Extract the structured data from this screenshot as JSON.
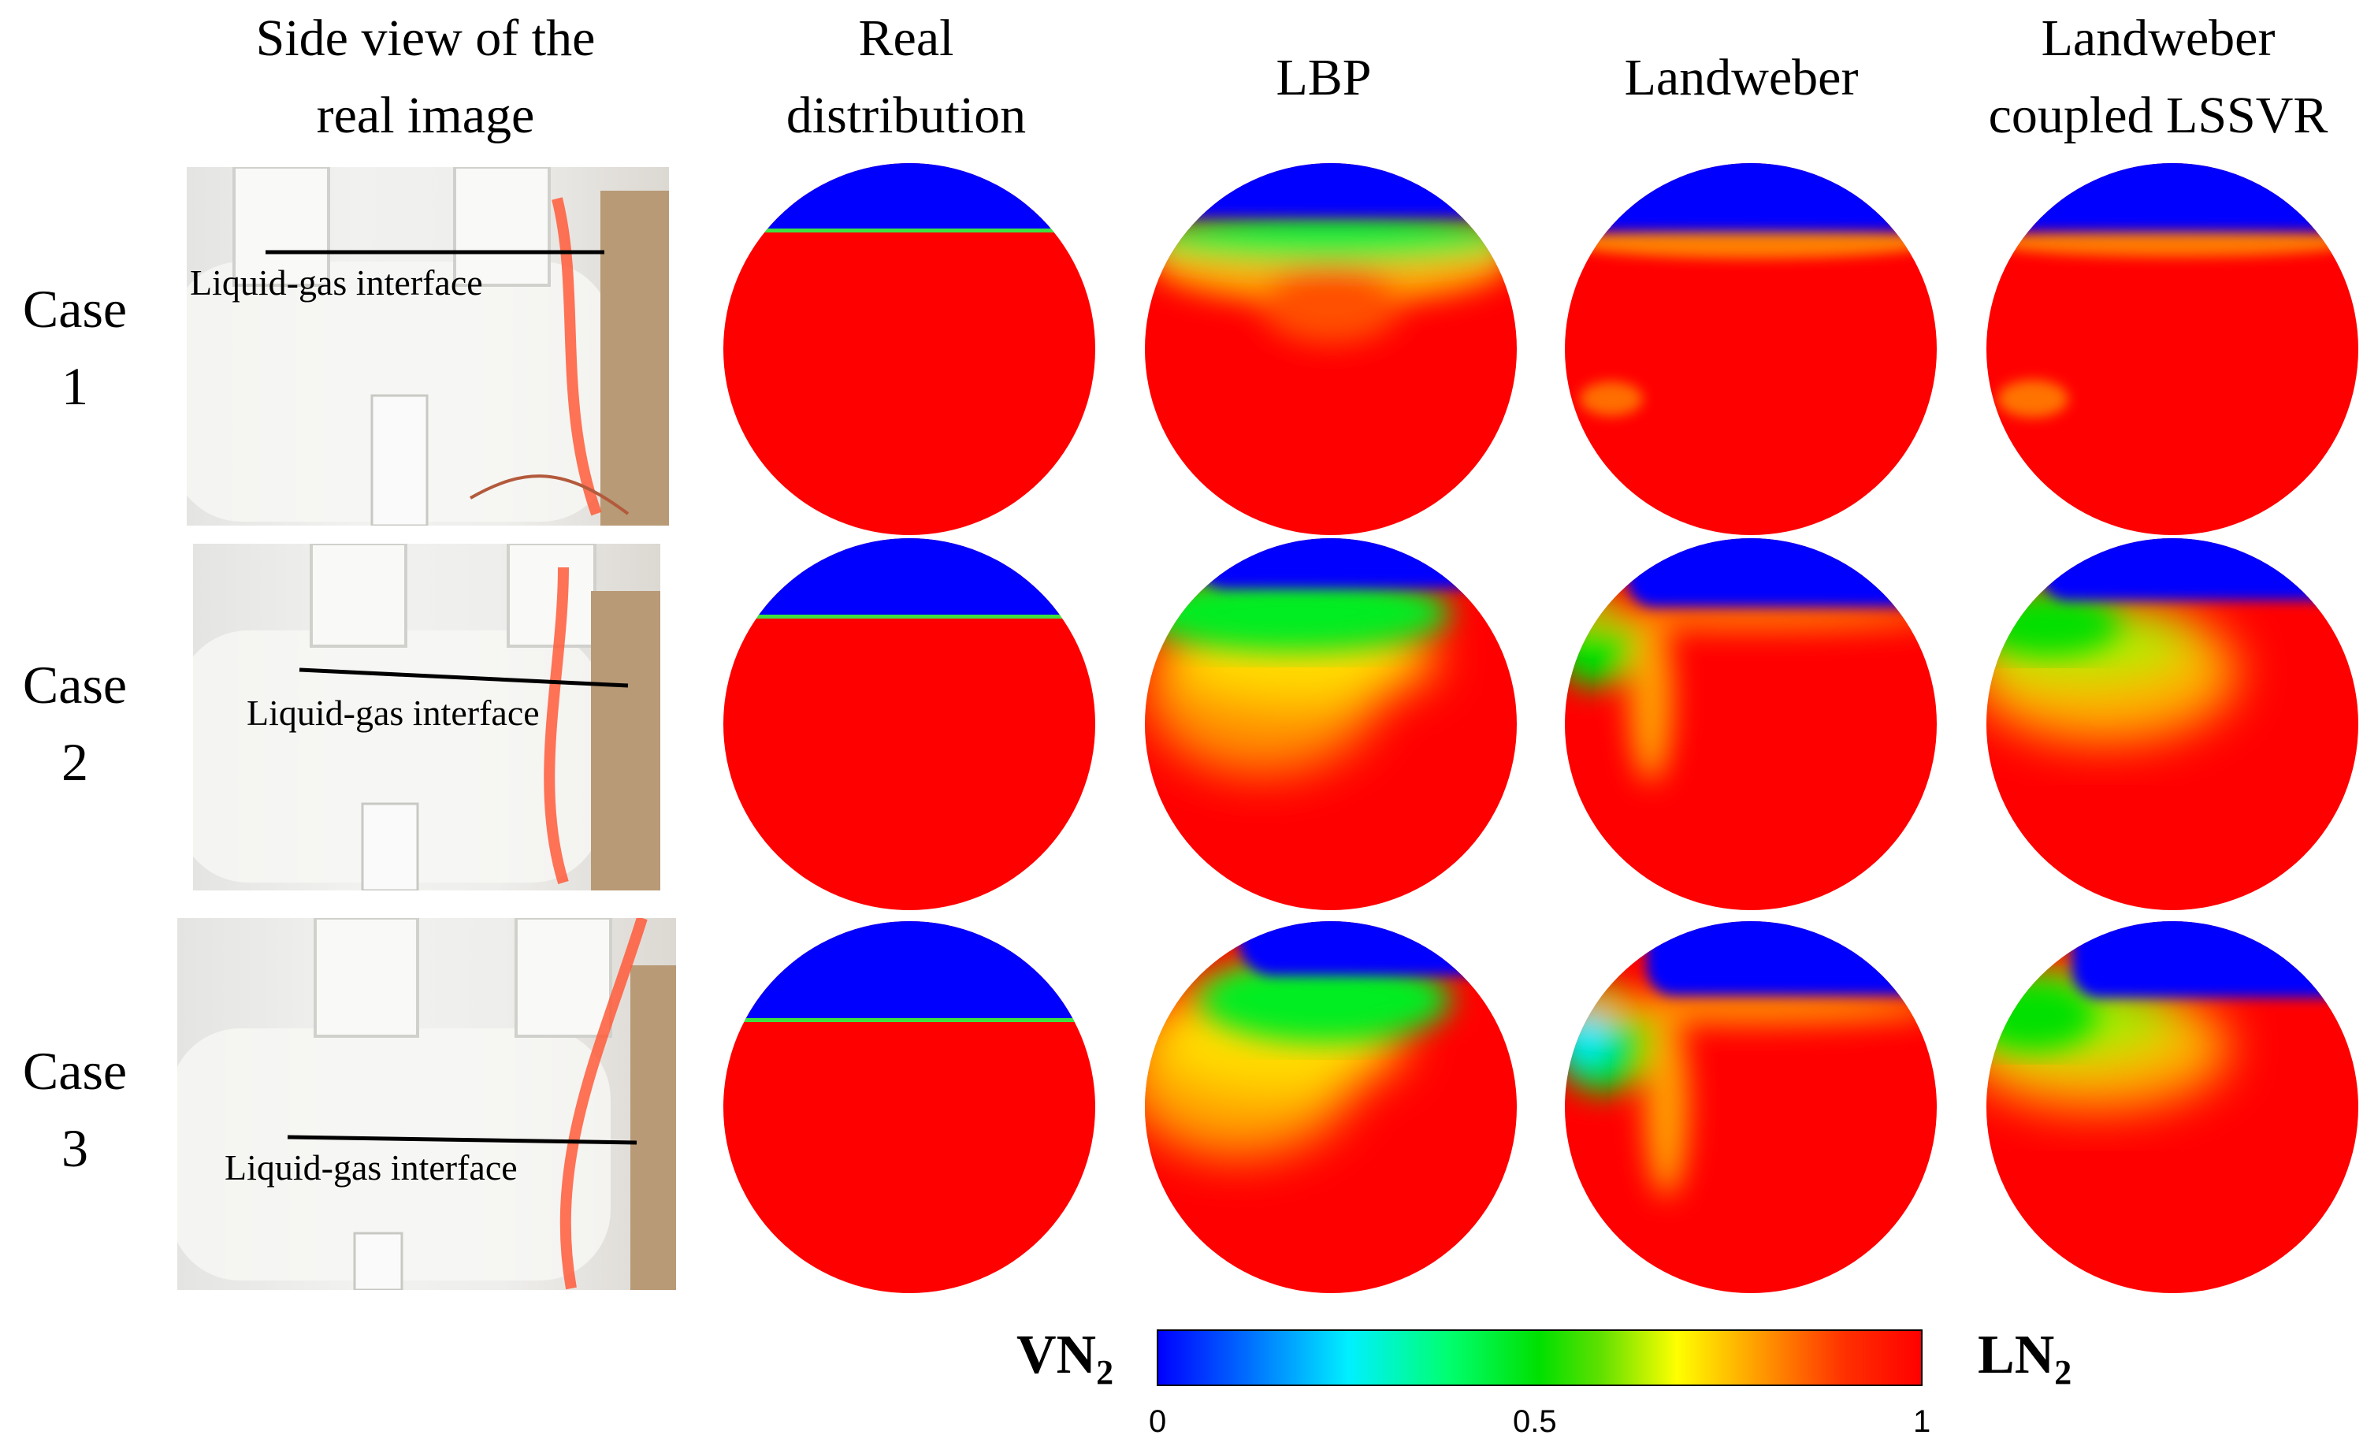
{
  "columns": [
    {
      "lines": [
        "Side view of the",
        "real image"
      ]
    },
    {
      "lines": [
        "Real",
        "distribution"
      ]
    },
    {
      "lines": [
        "LBP"
      ]
    },
    {
      "lines": [
        "Landweber"
      ]
    },
    {
      "lines": [
        "Landweber",
        "coupled LSSVR"
      ]
    }
  ],
  "cases": [
    {
      "word": "Case",
      "number": "1",
      "photo_caption": "Liquid-gas interface"
    },
    {
      "word": "Case",
      "number": "2",
      "photo_caption": "Liquid-gas interface"
    },
    {
      "word": "Case",
      "number": "3",
      "photo_caption": "Liquid-gas interface"
    }
  ],
  "colorbar": {
    "left_label": "VN",
    "right_label": "LN",
    "subscript": "2",
    "ticks": [
      "0",
      "0.5",
      "1"
    ],
    "colors": {
      "vapor": "#0000ff",
      "mid": "#00e000",
      "liquid": "#ff0000"
    }
  }
}
